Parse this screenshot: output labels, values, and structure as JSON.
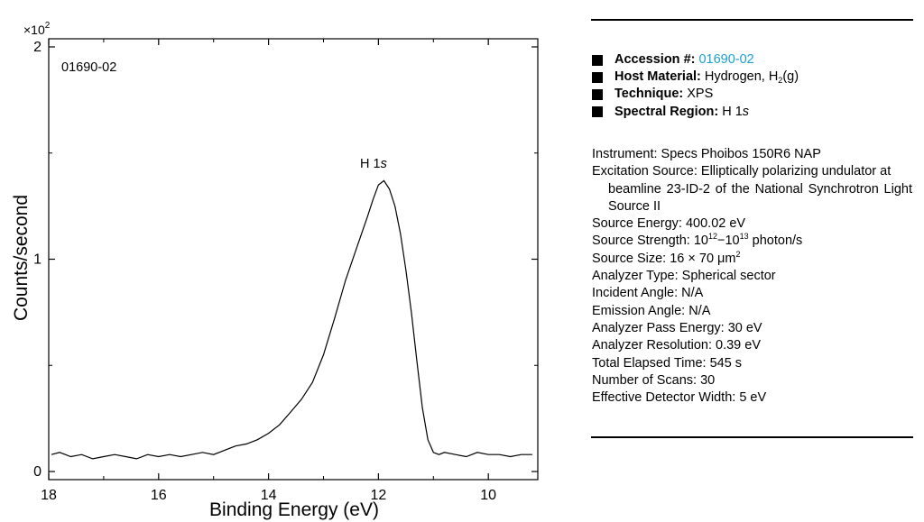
{
  "chart_data": {
    "type": "line",
    "title": "",
    "sample_label": "01690-02",
    "peak_label": "H 1s",
    "xlabel": "Binding Energy (eV)",
    "ylabel": "Counts/second",
    "y_multiplier": "×10",
    "y_multiplier_exp": "2",
    "xlim": [
      18,
      9.1
    ],
    "ylim": [
      0,
      2
    ],
    "x_ticks": [
      18,
      16,
      14,
      12,
      10
    ],
    "y_ticks": [
      0,
      1,
      2
    ],
    "x_tick_labels": [
      "18",
      "16",
      "14",
      "12",
      "10"
    ],
    "y_tick_labels": [
      "0",
      "1",
      "2"
    ],
    "series": [
      {
        "name": "H 1s",
        "x": [
          17.95,
          17.8,
          17.6,
          17.4,
          17.2,
          17.0,
          16.8,
          16.6,
          16.4,
          16.2,
          16.0,
          15.8,
          15.6,
          15.4,
          15.2,
          15.0,
          14.8,
          14.6,
          14.4,
          14.2,
          14.0,
          13.8,
          13.6,
          13.4,
          13.2,
          13.0,
          12.8,
          12.6,
          12.4,
          12.2,
          12.1,
          12.0,
          11.9,
          11.8,
          11.7,
          11.6,
          11.5,
          11.4,
          11.3,
          11.2,
          11.1,
          11.0,
          10.9,
          10.8,
          10.6,
          10.4,
          10.2,
          10.0,
          9.8,
          9.6,
          9.4,
          9.2
        ],
        "y": [
          0.08,
          0.09,
          0.07,
          0.08,
          0.06,
          0.07,
          0.08,
          0.07,
          0.06,
          0.08,
          0.07,
          0.08,
          0.07,
          0.08,
          0.09,
          0.08,
          0.1,
          0.12,
          0.13,
          0.15,
          0.18,
          0.22,
          0.28,
          0.34,
          0.42,
          0.55,
          0.72,
          0.9,
          1.05,
          1.2,
          1.28,
          1.35,
          1.37,
          1.33,
          1.25,
          1.12,
          0.95,
          0.75,
          0.52,
          0.3,
          0.15,
          0.09,
          0.08,
          0.09,
          0.08,
          0.07,
          0.09,
          0.08,
          0.08,
          0.07,
          0.08,
          0.08
        ]
      }
    ]
  },
  "info": {
    "accession_label": "Accession #:",
    "accession_value": "01690-02",
    "host_label": "Host Material:",
    "host_value_pre": "Hydrogen, H",
    "host_value_sub": "2",
    "host_value_post": "(g)",
    "technique_label": "Technique:",
    "technique_value": "XPS",
    "region_label": "Spectral Region:",
    "region_value_pre": "H 1",
    "region_value_italic": "s"
  },
  "details": {
    "instrument": "Instrument: Specs Phoibos 150R6 NAP",
    "excitation_first": "Excitation Source: Elliptically polarizing undulator at",
    "excitation_cont": "beamline 23-ID-2 of the National Synchrotron Light Source II",
    "source_energy": "Source Energy: 400.02 eV",
    "source_strength_pre": "Source Strength: 10",
    "source_strength_exp1": "12",
    "source_strength_mid": "−10",
    "source_strength_exp2": "13",
    "source_strength_post": " photon/s",
    "source_size_pre": "Source Size: 16 × 70 μm",
    "source_size_exp": "2",
    "analyzer_type": "Analyzer Type: Spherical sector",
    "incident_angle": "Incident Angle: N/A",
    "emission_angle": "Emission Angle: N/A",
    "pass_energy": "Analyzer Pass Energy: 30 eV",
    "resolution": "Analyzer Resolution: 0.39 eV",
    "elapsed_time": "Total Elapsed Time: 545 s",
    "num_scans": "Number of Scans: 30",
    "detector_width": "Effective Detector Width: 5 eV"
  }
}
